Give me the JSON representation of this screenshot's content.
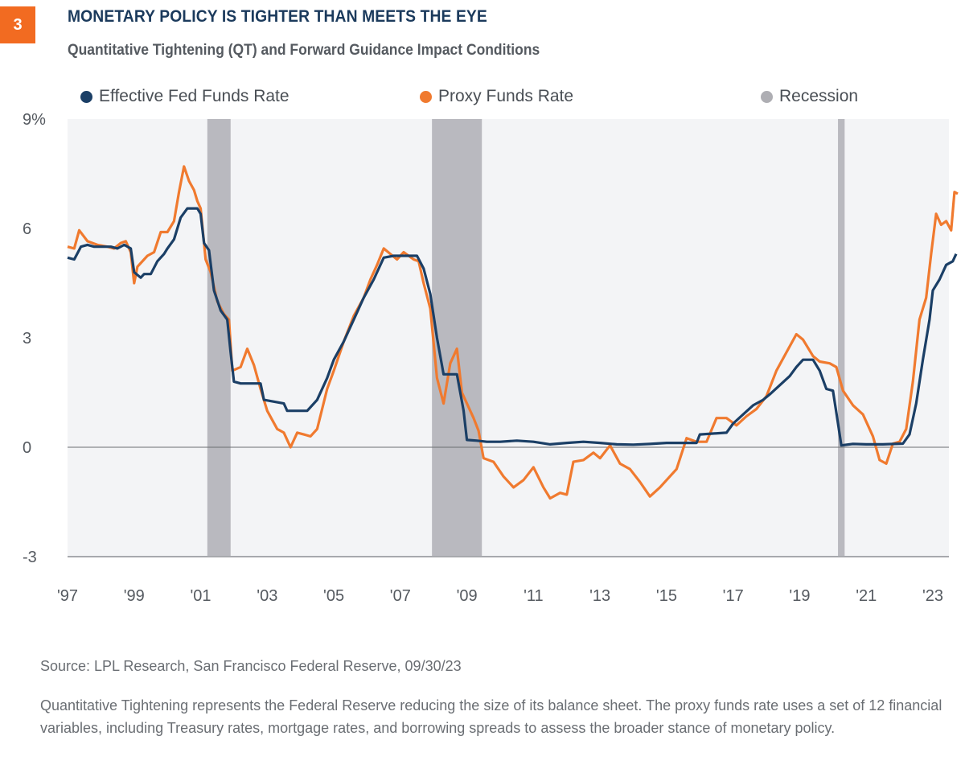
{
  "header": {
    "badge": "3",
    "title": "MONETARY POLICY IS TIGHTER THAN MEETS THE EYE",
    "subtitle": "Quantitative Tightening (QT) and Forward Guidance Impact Conditions"
  },
  "colors": {
    "badge": "#f26b21",
    "title": "#1b3a5c",
    "effr": "#1b3f66",
    "proxy": "#f07a2f",
    "recession": "#b9b9bf",
    "plot_bg": "#f3f4f6"
  },
  "footer": {
    "source": "Source: LPL Research, San Francisco Federal Reserve, 09/30/23",
    "note": "Quantitative Tightening represents the Federal Reserve reducing the size of its balance sheet. The proxy funds rate uses a set of 12 financial variables, including Treasury rates, mortgage rates, and borrowing spreads to assess the broader stance of monetary policy."
  },
  "chart_data": {
    "type": "line",
    "title": "MONETARY POLICY IS TIGHTER THAN MEETS THE EYE",
    "subtitle": "Quantitative Tightening (QT) and Forward Guidance Impact Conditions",
    "xlabel": "",
    "ylabel": "",
    "xlim": [
      1997,
      2023.75
    ],
    "ylim": [
      -3,
      9
    ],
    "y_ticks": [
      9,
      6,
      3,
      0,
      -3
    ],
    "y_tick_labels": [
      "9%",
      "6",
      "3",
      "0",
      "-3"
    ],
    "x_ticks": [
      1997,
      1999,
      2001,
      2003,
      2005,
      2007,
      2009,
      2011,
      2013,
      2015,
      2017,
      2019,
      2021,
      2023
    ],
    "x_tick_labels": [
      "'97",
      "'99",
      "'01",
      "'03",
      "'05",
      "'07",
      "'09",
      "'11",
      "'13",
      "'15",
      "'17",
      "'19",
      "'21",
      "'23"
    ],
    "grid": false,
    "legend": {
      "position": "top",
      "entries": [
        {
          "label": "Effective Fed Funds Rate",
          "key": "effr"
        },
        {
          "label": "Proxy Funds Rate",
          "key": "proxy"
        },
        {
          "label": "Recession",
          "key": "recession"
        }
      ]
    },
    "recessions": [
      {
        "start": 2001.2,
        "end": 2001.9
      },
      {
        "start": 2007.95,
        "end": 2009.45
      },
      {
        "start": 2020.15,
        "end": 2020.35
      }
    ],
    "series": [
      {
        "name": "Effective Fed Funds Rate",
        "key": "effr",
        "points": [
          [
            1997.0,
            5.2
          ],
          [
            1997.2,
            5.15
          ],
          [
            1997.4,
            5.5
          ],
          [
            1997.6,
            5.55
          ],
          [
            1997.8,
            5.5
          ],
          [
            1998.0,
            5.5
          ],
          [
            1998.3,
            5.5
          ],
          [
            1998.5,
            5.45
          ],
          [
            1998.7,
            5.55
          ],
          [
            1998.9,
            5.45
          ],
          [
            1999.0,
            4.8
          ],
          [
            1999.2,
            4.65
          ],
          [
            1999.3,
            4.75
          ],
          [
            1999.5,
            4.75
          ],
          [
            1999.7,
            5.1
          ],
          [
            1999.9,
            5.3
          ],
          [
            2000.0,
            5.45
          ],
          [
            2000.2,
            5.7
          ],
          [
            2000.4,
            6.3
          ],
          [
            2000.6,
            6.55
          ],
          [
            2000.9,
            6.55
          ],
          [
            2001.0,
            6.4
          ],
          [
            2001.1,
            5.6
          ],
          [
            2001.25,
            5.4
          ],
          [
            2001.4,
            4.3
          ],
          [
            2001.6,
            3.75
          ],
          [
            2001.8,
            3.5
          ],
          [
            2001.9,
            2.6
          ],
          [
            2002.0,
            1.8
          ],
          [
            2002.2,
            1.75
          ],
          [
            2002.5,
            1.75
          ],
          [
            2002.8,
            1.75
          ],
          [
            2002.9,
            1.3
          ],
          [
            2003.2,
            1.25
          ],
          [
            2003.5,
            1.2
          ],
          [
            2003.6,
            1.0
          ],
          [
            2004.2,
            1.0
          ],
          [
            2004.5,
            1.3
          ],
          [
            2004.8,
            1.9
          ],
          [
            2005.0,
            2.4
          ],
          [
            2005.3,
            2.9
          ],
          [
            2005.6,
            3.5
          ],
          [
            2005.9,
            4.1
          ],
          [
            2006.2,
            4.6
          ],
          [
            2006.5,
            5.2
          ],
          [
            2006.8,
            5.25
          ],
          [
            2007.5,
            5.25
          ],
          [
            2007.7,
            4.9
          ],
          [
            2007.9,
            4.2
          ],
          [
            2008.1,
            3.0
          ],
          [
            2008.3,
            2.0
          ],
          [
            2008.7,
            2.0
          ],
          [
            2008.9,
            1.0
          ],
          [
            2009.0,
            0.2
          ],
          [
            2009.3,
            0.18
          ],
          [
            2009.6,
            0.15
          ],
          [
            2010.0,
            0.15
          ],
          [
            2010.5,
            0.18
          ],
          [
            2011.0,
            0.15
          ],
          [
            2011.5,
            0.08
          ],
          [
            2012.0,
            0.12
          ],
          [
            2012.5,
            0.15
          ],
          [
            2013.0,
            0.12
          ],
          [
            2013.5,
            0.08
          ],
          [
            2014.0,
            0.07
          ],
          [
            2014.5,
            0.09
          ],
          [
            2015.0,
            0.12
          ],
          [
            2015.9,
            0.12
          ],
          [
            2016.0,
            0.35
          ],
          [
            2016.8,
            0.4
          ],
          [
            2017.0,
            0.65
          ],
          [
            2017.3,
            0.9
          ],
          [
            2017.6,
            1.15
          ],
          [
            2017.9,
            1.3
          ],
          [
            2018.1,
            1.45
          ],
          [
            2018.4,
            1.7
          ],
          [
            2018.7,
            1.95
          ],
          [
            2018.9,
            2.2
          ],
          [
            2019.1,
            2.4
          ],
          [
            2019.4,
            2.4
          ],
          [
            2019.6,
            2.1
          ],
          [
            2019.8,
            1.6
          ],
          [
            2020.0,
            1.55
          ],
          [
            2020.15,
            0.65
          ],
          [
            2020.25,
            0.05
          ],
          [
            2020.6,
            0.09
          ],
          [
            2021.0,
            0.08
          ],
          [
            2021.5,
            0.08
          ],
          [
            2022.1,
            0.1
          ],
          [
            2022.3,
            0.35
          ],
          [
            2022.5,
            1.2
          ],
          [
            2022.7,
            2.4
          ],
          [
            2022.9,
            3.5
          ],
          [
            2023.0,
            4.3
          ],
          [
            2023.2,
            4.6
          ],
          [
            2023.4,
            5.0
          ],
          [
            2023.6,
            5.1
          ],
          [
            2023.7,
            5.3
          ]
        ]
      },
      {
        "name": "Proxy Funds Rate",
        "key": "proxy",
        "points": [
          [
            1997.0,
            5.5
          ],
          [
            1997.2,
            5.45
          ],
          [
            1997.35,
            5.95
          ],
          [
            1997.6,
            5.65
          ],
          [
            1997.9,
            5.55
          ],
          [
            1998.2,
            5.5
          ],
          [
            1998.4,
            5.45
          ],
          [
            1998.6,
            5.6
          ],
          [
            1998.75,
            5.65
          ],
          [
            1998.9,
            5.35
          ],
          [
            1999.0,
            4.5
          ],
          [
            1999.1,
            4.95
          ],
          [
            1999.4,
            5.25
          ],
          [
            1999.6,
            5.35
          ],
          [
            1999.8,
            5.9
          ],
          [
            2000.0,
            5.9
          ],
          [
            2000.2,
            6.2
          ],
          [
            2000.35,
            7.0
          ],
          [
            2000.5,
            7.7
          ],
          [
            2000.65,
            7.3
          ],
          [
            2000.8,
            7.05
          ],
          [
            2000.9,
            6.75
          ],
          [
            2001.0,
            6.55
          ],
          [
            2001.15,
            5.15
          ],
          [
            2001.3,
            4.8
          ],
          [
            2001.5,
            4.0
          ],
          [
            2001.7,
            3.65
          ],
          [
            2001.85,
            3.5
          ],
          [
            2001.95,
            2.1
          ],
          [
            2002.2,
            2.2
          ],
          [
            2002.4,
            2.7
          ],
          [
            2002.6,
            2.25
          ],
          [
            2002.8,
            1.6
          ],
          [
            2003.0,
            1.0
          ],
          [
            2003.3,
            0.5
          ],
          [
            2003.5,
            0.4
          ],
          [
            2003.7,
            0.0
          ],
          [
            2003.9,
            0.4
          ],
          [
            2004.1,
            0.35
          ],
          [
            2004.3,
            0.3
          ],
          [
            2004.5,
            0.5
          ],
          [
            2004.8,
            1.6
          ],
          [
            2005.0,
            2.1
          ],
          [
            2005.3,
            2.9
          ],
          [
            2005.6,
            3.6
          ],
          [
            2005.9,
            4.1
          ],
          [
            2006.1,
            4.6
          ],
          [
            2006.3,
            5.0
          ],
          [
            2006.5,
            5.45
          ],
          [
            2006.7,
            5.3
          ],
          [
            2006.9,
            5.15
          ],
          [
            2007.1,
            5.35
          ],
          [
            2007.4,
            5.15
          ],
          [
            2007.55,
            5.1
          ],
          [
            2007.7,
            4.5
          ],
          [
            2007.9,
            3.8
          ],
          [
            2008.1,
            1.9
          ],
          [
            2008.3,
            1.2
          ],
          [
            2008.5,
            2.3
          ],
          [
            2008.7,
            2.7
          ],
          [
            2008.85,
            1.5
          ],
          [
            2009.0,
            1.2
          ],
          [
            2009.2,
            0.8
          ],
          [
            2009.35,
            0.45
          ],
          [
            2009.5,
            -0.3
          ],
          [
            2009.8,
            -0.4
          ],
          [
            2010.1,
            -0.8
          ],
          [
            2010.4,
            -1.1
          ],
          [
            2010.7,
            -0.9
          ],
          [
            2011.0,
            -0.55
          ],
          [
            2011.3,
            -1.1
          ],
          [
            2011.5,
            -1.4
          ],
          [
            2011.8,
            -1.25
          ],
          [
            2012.0,
            -1.3
          ],
          [
            2012.2,
            -0.4
          ],
          [
            2012.5,
            -0.35
          ],
          [
            2012.8,
            -0.15
          ],
          [
            2013.0,
            -0.3
          ],
          [
            2013.3,
            0.05
          ],
          [
            2013.6,
            -0.45
          ],
          [
            2013.9,
            -0.6
          ],
          [
            2014.2,
            -0.95
          ],
          [
            2014.5,
            -1.35
          ],
          [
            2014.8,
            -1.1
          ],
          [
            2015.0,
            -0.9
          ],
          [
            2015.3,
            -0.6
          ],
          [
            2015.6,
            0.25
          ],
          [
            2015.9,
            0.15
          ],
          [
            2016.2,
            0.15
          ],
          [
            2016.5,
            0.8
          ],
          [
            2016.8,
            0.8
          ],
          [
            2017.1,
            0.6
          ],
          [
            2017.4,
            0.85
          ],
          [
            2017.7,
            1.05
          ],
          [
            2018.0,
            1.4
          ],
          [
            2018.3,
            2.1
          ],
          [
            2018.6,
            2.6
          ],
          [
            2018.9,
            3.1
          ],
          [
            2019.1,
            2.95
          ],
          [
            2019.4,
            2.5
          ],
          [
            2019.6,
            2.35
          ],
          [
            2019.9,
            2.3
          ],
          [
            2020.1,
            2.2
          ],
          [
            2020.3,
            1.55
          ],
          [
            2020.6,
            1.15
          ],
          [
            2020.9,
            0.9
          ],
          [
            2021.2,
            0.3
          ],
          [
            2021.4,
            -0.35
          ],
          [
            2021.6,
            -0.45
          ],
          [
            2021.8,
            0.1
          ],
          [
            2022.0,
            0.15
          ],
          [
            2022.2,
            0.5
          ],
          [
            2022.4,
            1.8
          ],
          [
            2022.6,
            3.5
          ],
          [
            2022.8,
            4.1
          ],
          [
            2022.95,
            5.3
          ],
          [
            2023.1,
            6.4
          ],
          [
            2023.25,
            6.1
          ],
          [
            2023.4,
            6.2
          ],
          [
            2023.55,
            5.95
          ],
          [
            2023.65,
            7.0
          ],
          [
            2023.75,
            6.95
          ]
        ]
      }
    ]
  }
}
